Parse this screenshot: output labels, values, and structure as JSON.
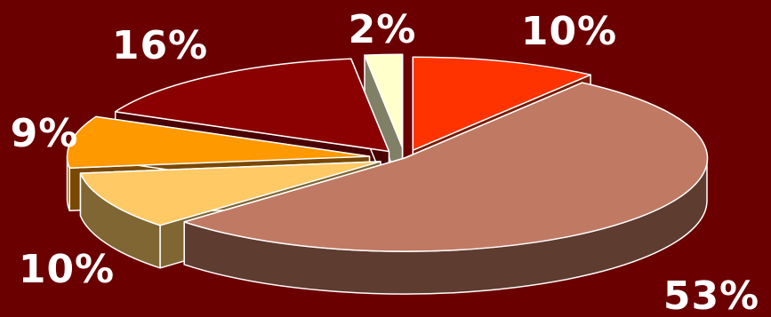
{
  "chart_data": {
    "type": "pie",
    "style": "3d-exploded",
    "legend": "none",
    "values": [
      10,
      53,
      10,
      9,
      16,
      2
    ],
    "labels": [
      "10%",
      "53%",
      "10%",
      "9%",
      "16%",
      "2%"
    ],
    "colors": {
      "top": [
        "#ff3300",
        "#c07a63",
        "#ffc966",
        "#ff9900",
        "#8b0000",
        "#ffffcc"
      ],
      "side": [
        "#7a1a00",
        "#5e3c30",
        "#7f6633",
        "#7a4800",
        "#4a0000",
        "#808066"
      ]
    },
    "background": "#6b0000"
  }
}
